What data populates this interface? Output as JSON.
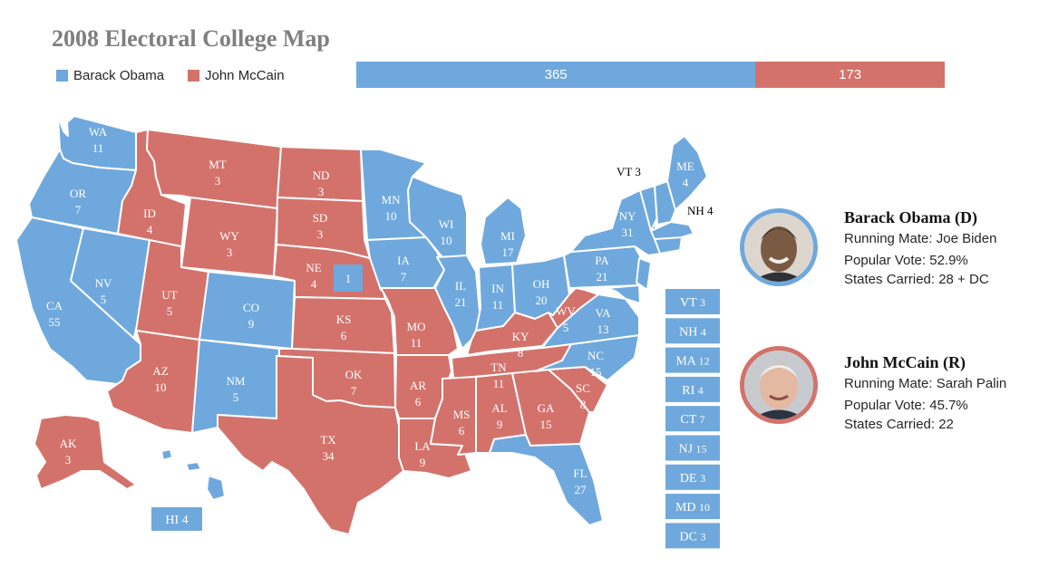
{
  "title": "2008 Electoral College Map",
  "colors": {
    "obama": "#6fa8dc",
    "mccain": "#d3726b"
  },
  "legend": [
    {
      "party": "obama",
      "label": "Barack Obama"
    },
    {
      "party": "mccain",
      "label": "John McCain"
    }
  ],
  "tally": {
    "obama": 365,
    "mccain": 173,
    "obama_label": "365",
    "mccain_label": "173"
  },
  "states": [
    {
      "abbr": "WA",
      "ev": "11",
      "winner": "obama"
    },
    {
      "abbr": "OR",
      "ev": "7",
      "winner": "obama"
    },
    {
      "abbr": "CA",
      "ev": "55",
      "winner": "obama"
    },
    {
      "abbr": "NV",
      "ev": "5",
      "winner": "obama"
    },
    {
      "abbr": "ID",
      "ev": "4",
      "winner": "mccain"
    },
    {
      "abbr": "MT",
      "ev": "3",
      "winner": "mccain"
    },
    {
      "abbr": "WY",
      "ev": "3",
      "winner": "mccain"
    },
    {
      "abbr": "UT",
      "ev": "5",
      "winner": "mccain"
    },
    {
      "abbr": "AZ",
      "ev": "10",
      "winner": "mccain"
    },
    {
      "abbr": "CO",
      "ev": "9",
      "winner": "obama"
    },
    {
      "abbr": "NM",
      "ev": "5",
      "winner": "obama"
    },
    {
      "abbr": "ND",
      "ev": "3",
      "winner": "mccain"
    },
    {
      "abbr": "SD",
      "ev": "3",
      "winner": "mccain"
    },
    {
      "abbr": "NE",
      "ev": "4",
      "winner": "mccain"
    },
    {
      "abbr": "KS",
      "ev": "6",
      "winner": "mccain"
    },
    {
      "abbr": "OK",
      "ev": "7",
      "winner": "mccain"
    },
    {
      "abbr": "TX",
      "ev": "34",
      "winner": "mccain"
    },
    {
      "abbr": "MN",
      "ev": "10",
      "winner": "obama"
    },
    {
      "abbr": "IA",
      "ev": "7",
      "winner": "obama"
    },
    {
      "abbr": "MO",
      "ev": "11",
      "winner": "mccain"
    },
    {
      "abbr": "AR",
      "ev": "6",
      "winner": "mccain"
    },
    {
      "abbr": "LA",
      "ev": "9",
      "winner": "mccain"
    },
    {
      "abbr": "WI",
      "ev": "10",
      "winner": "obama"
    },
    {
      "abbr": "IL",
      "ev": "21",
      "winner": "obama"
    },
    {
      "abbr": "MI",
      "ev": "17",
      "winner": "obama"
    },
    {
      "abbr": "IN",
      "ev": "11",
      "winner": "obama"
    },
    {
      "abbr": "OH",
      "ev": "20",
      "winner": "obama"
    },
    {
      "abbr": "KY",
      "ev": "8",
      "winner": "mccain"
    },
    {
      "abbr": "TN",
      "ev": "11",
      "winner": "mccain"
    },
    {
      "abbr": "MS",
      "ev": "6",
      "winner": "mccain"
    },
    {
      "abbr": "AL",
      "ev": "9",
      "winner": "mccain"
    },
    {
      "abbr": "GA",
      "ev": "15",
      "winner": "mccain"
    },
    {
      "abbr": "FL",
      "ev": "27",
      "winner": "obama"
    },
    {
      "abbr": "SC",
      "ev": "8",
      "winner": "mccain"
    },
    {
      "abbr": "NC",
      "ev": "15",
      "winner": "obama"
    },
    {
      "abbr": "VA",
      "ev": "13",
      "winner": "obama"
    },
    {
      "abbr": "WV",
      "ev": "5",
      "winner": "mccain"
    },
    {
      "abbr": "PA",
      "ev": "21",
      "winner": "obama"
    },
    {
      "abbr": "NY",
      "ev": "31",
      "winner": "obama"
    },
    {
      "abbr": "ME",
      "ev": "4",
      "winner": "obama"
    },
    {
      "abbr": "VT",
      "ev": "3",
      "winner": "obama"
    },
    {
      "abbr": "NH",
      "ev": "4",
      "winner": "obama"
    },
    {
      "abbr": "AK",
      "ev": "3",
      "winner": "mccain"
    },
    {
      "abbr": "HI",
      "ev": "4",
      "winner": "obama"
    }
  ],
  "nebraska_district": {
    "ev": "1",
    "winner": "obama"
  },
  "small_states": [
    {
      "abbr": "VT",
      "ev": "3",
      "winner": "obama"
    },
    {
      "abbr": "NH",
      "ev": "4",
      "winner": "obama"
    },
    {
      "abbr": "MA",
      "ev": "12",
      "winner": "obama"
    },
    {
      "abbr": "RI",
      "ev": "4",
      "winner": "obama"
    },
    {
      "abbr": "CT",
      "ev": "7",
      "winner": "obama"
    },
    {
      "abbr": "NJ",
      "ev": "15",
      "winner": "obama"
    },
    {
      "abbr": "DE",
      "ev": "3",
      "winner": "obama"
    },
    {
      "abbr": "MD",
      "ev": "10",
      "winner": "obama"
    },
    {
      "abbr": "DC",
      "ev": "3",
      "winner": "obama"
    }
  ],
  "candidates": [
    {
      "name": "Barack Obama (D)",
      "running_mate": "Running Mate: Joe Biden",
      "popular_vote": "Popular Vote:  52.9%",
      "states_carried": "States Carried: 28 + DC",
      "party": "obama",
      "photo_icon": "candidate-portrait"
    },
    {
      "name": "John McCain (R)",
      "running_mate": "Running Mate: Sarah Palin",
      "popular_vote": "Popular Vote:  45.7%",
      "states_carried": "States Carried: 22",
      "party": "mccain",
      "photo_icon": "candidate-portrait"
    }
  ]
}
